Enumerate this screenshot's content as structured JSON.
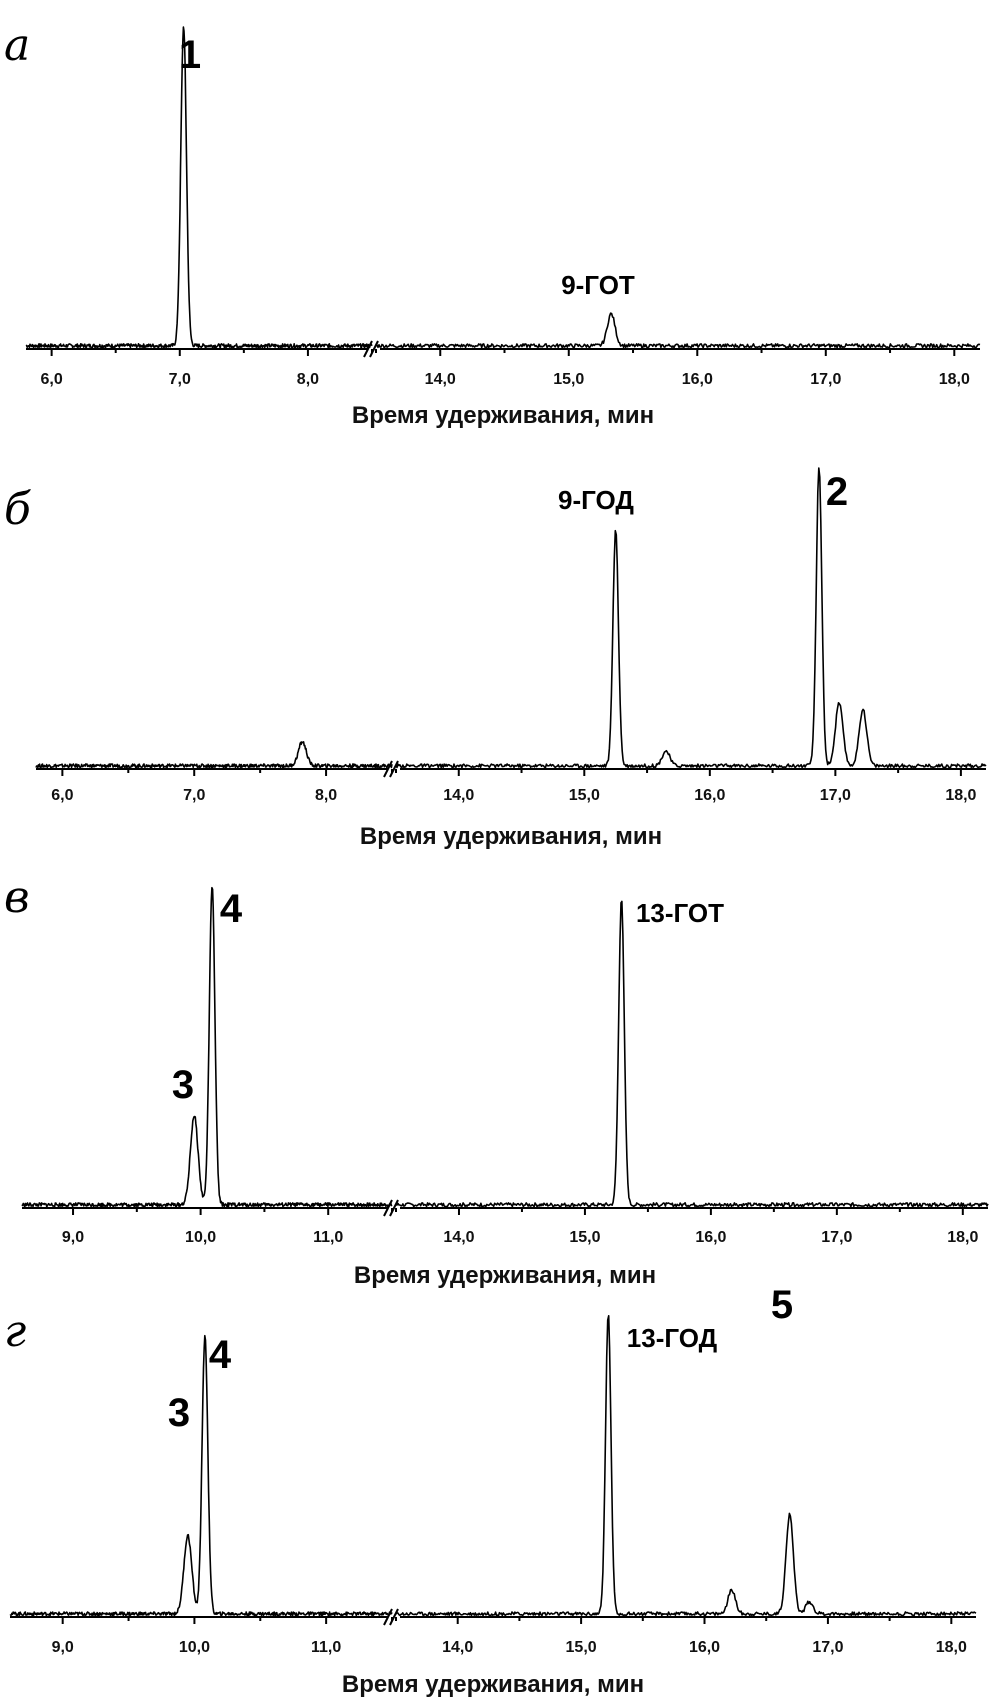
{
  "chart_data": [
    {
      "type": "line",
      "panel_label": "а",
      "xlabel": "Время удерживания, мин",
      "axis_break": [
        8.5,
        13.5
      ],
      "xlim": [
        5.8,
        18.2
      ],
      "ticks": [
        "6,0",
        "7,0",
        "8,0",
        "14,0",
        "15,0",
        "16,0",
        "17,0",
        "18,0"
      ],
      "tick_values": [
        6,
        7,
        8,
        14,
        15,
        16,
        17,
        18
      ],
      "peaks": [
        {
          "label": "1",
          "x": 7.03,
          "height": 1.0
        },
        {
          "label": "9-ГОТ",
          "x": 15.33,
          "height": 0.1
        }
      ]
    },
    {
      "type": "line",
      "panel_label": "б",
      "xlabel": "Время удерживания, мин",
      "axis_break": [
        8.5,
        13.5
      ],
      "xlim": [
        5.8,
        18.2
      ],
      "ticks": [
        "6,0",
        "7,0",
        "8,0",
        "14,0",
        "15,0",
        "16,0",
        "17,0",
        "18,0"
      ],
      "tick_values": [
        6,
        7,
        8,
        14,
        15,
        16,
        17,
        18
      ],
      "peaks": [
        {
          "label": "",
          "x": 7.82,
          "height": 0.08
        },
        {
          "label": "9-ГОД",
          "x": 15.25,
          "height": 0.79
        },
        {
          "label": "",
          "x": 15.65,
          "height": 0.05
        },
        {
          "label": "2",
          "x": 16.87,
          "height": 1.0
        },
        {
          "label": "",
          "x": 17.03,
          "height": 0.21
        },
        {
          "label": "",
          "x": 17.22,
          "height": 0.19
        }
      ]
    },
    {
      "type": "line",
      "panel_label": "в",
      "xlabel": "Время удерживания, мин",
      "axis_break": [
        11.5,
        13.5
      ],
      "xlim": [
        8.6,
        18.2
      ],
      "ticks": [
        "9,0",
        "10,0",
        "11,0",
        "14,0",
        "15,0",
        "16,0",
        "17,0",
        "18,0"
      ],
      "tick_values": [
        9,
        10,
        11,
        14,
        15,
        16,
        17,
        18
      ],
      "peaks": [
        {
          "label": "3",
          "x": 9.95,
          "height": 0.28
        },
        {
          "label": "4",
          "x": 10.09,
          "height": 1.0
        },
        {
          "label": "13-ГОТ",
          "x": 15.29,
          "height": 0.97
        }
      ]
    },
    {
      "type": "line",
      "panel_label": "г",
      "xlabel": "Время удерживания, мин",
      "axis_break": [
        11.5,
        13.5
      ],
      "xlim": [
        8.6,
        18.2
      ],
      "ticks": [
        "9,0",
        "10,0",
        "11,0",
        "14,0",
        "15,0",
        "16,0",
        "17,0",
        "18,0"
      ],
      "tick_values": [
        9,
        10,
        11,
        14,
        15,
        16,
        17,
        18
      ],
      "peaks": [
        {
          "label": "3",
          "x": 9.95,
          "height": 0.26
        },
        {
          "label": "4",
          "x": 10.08,
          "height": 0.92
        },
        {
          "label": "13-ГОД",
          "x": 15.22,
          "height": 1.0
        },
        {
          "label": "",
          "x": 16.22,
          "height": 0.08
        },
        {
          "label": "5",
          "x": 16.69,
          "height": 0.33
        },
        {
          "label": "",
          "x": 16.85,
          "height": 0.04
        }
      ]
    }
  ]
}
